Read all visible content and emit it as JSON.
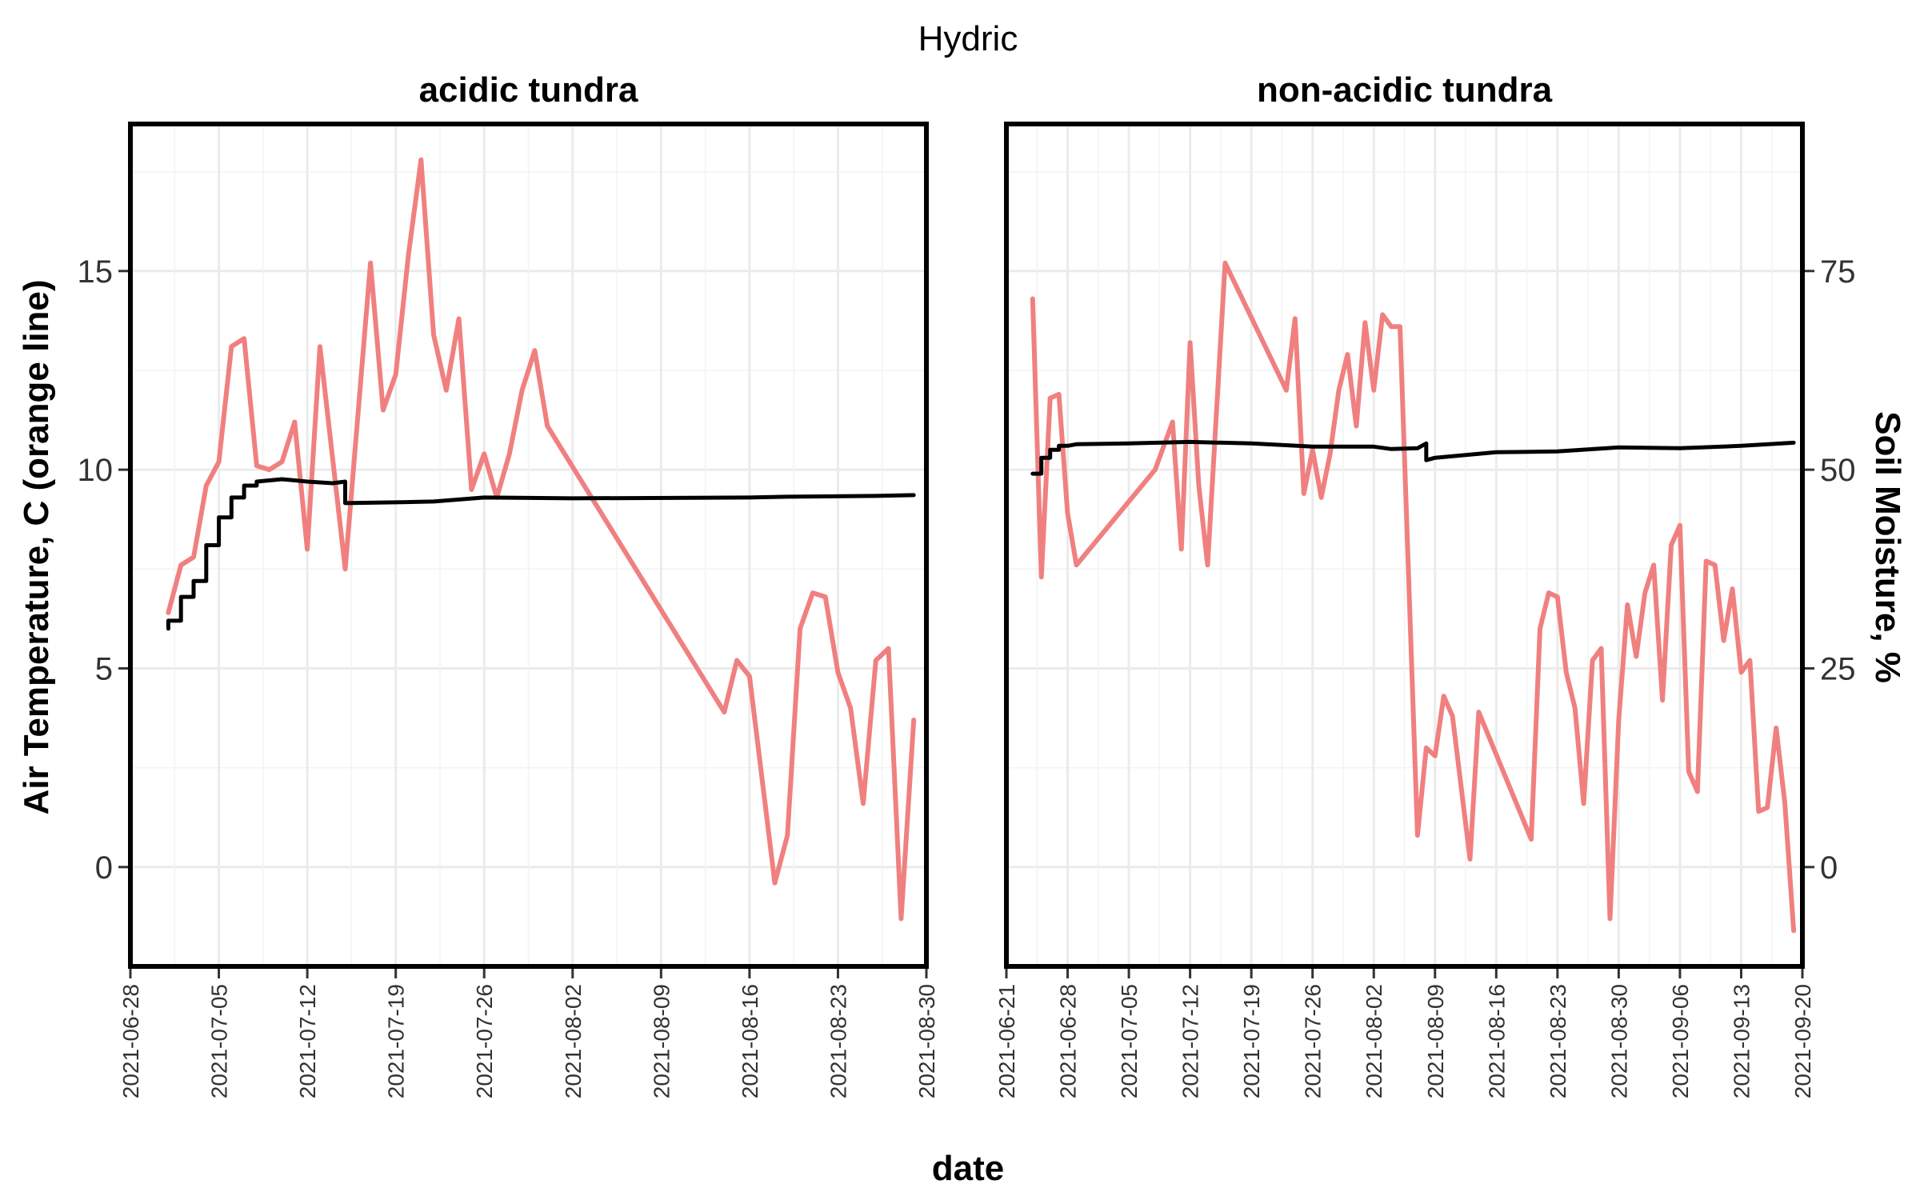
{
  "chart_data": {
    "type": "line",
    "title": "Hydric",
    "xlabel": "date",
    "ylabel": "Air Temperature, C (orange line)",
    "ylabel_secondary": "Soil Moisture, %",
    "ylim": [
      -2.5,
      18.7
    ],
    "ylim_secondary": [
      -12.5,
      93.5
    ],
    "y_ticks": [
      "0",
      "5",
      "10",
      "15"
    ],
    "y_ticks_secondary": [
      "0",
      "25",
      "50",
      "75"
    ],
    "grid": true,
    "series_colors": {
      "air_temperature": "#f08080",
      "soil_moisture": "#000000"
    },
    "panels": [
      {
        "title": "acidic tundra",
        "xlim": [
          "2021-06-28",
          "2021-08-30"
        ],
        "x_ticks": [
          "2021-06-28",
          "2021-07-05",
          "2021-07-12",
          "2021-07-19",
          "2021-07-26",
          "2021-08-02",
          "2021-08-09",
          "2021-08-16",
          "2021-08-23",
          "2021-08-30"
        ],
        "series": [
          {
            "key": "air_temperature",
            "points": [
              [
                "2021-07-01",
                6.4
              ],
              [
                "2021-07-02",
                7.6
              ],
              [
                "2021-07-03",
                7.8
              ],
              [
                "2021-07-04",
                9.6
              ],
              [
                "2021-07-05",
                10.2
              ],
              [
                "2021-07-06",
                13.1
              ],
              [
                "2021-07-07",
                13.3
              ],
              [
                "2021-07-08",
                10.1
              ],
              [
                "2021-07-09",
                10.0
              ],
              [
                "2021-07-10",
                10.2
              ],
              [
                "2021-07-11",
                11.2
              ],
              [
                "2021-07-12",
                8.0
              ],
              [
                "2021-07-13",
                13.1
              ],
              [
                "2021-07-15",
                7.5
              ],
              [
                "2021-07-17",
                15.2
              ],
              [
                "2021-07-18",
                11.5
              ],
              [
                "2021-07-19",
                12.4
              ],
              [
                "2021-07-20",
                15.4
              ],
              [
                "2021-07-21",
                17.8
              ],
              [
                "2021-07-22",
                13.4
              ],
              [
                "2021-07-23",
                12.0
              ],
              [
                "2021-07-24",
                13.8
              ],
              [
                "2021-07-25",
                9.5
              ],
              [
                "2021-07-26",
                10.4
              ],
              [
                "2021-07-27",
                9.3
              ],
              [
                "2021-07-28",
                10.4
              ],
              [
                "2021-07-29",
                12.0
              ],
              [
                "2021-07-30",
                13.0
              ],
              [
                "2021-07-31",
                11.1
              ],
              [
                "2021-08-14",
                3.9
              ],
              [
                "2021-08-15",
                5.2
              ],
              [
                "2021-08-16",
                4.8
              ],
              [
                "2021-08-18",
                -0.4
              ],
              [
                "2021-08-19",
                0.8
              ],
              [
                "2021-08-20",
                6.0
              ],
              [
                "2021-08-21",
                6.9
              ],
              [
                "2021-08-22",
                6.8
              ],
              [
                "2021-08-23",
                4.9
              ],
              [
                "2021-08-24",
                4.0
              ],
              [
                "2021-08-25",
                1.6
              ],
              [
                "2021-08-26",
                5.2
              ],
              [
                "2021-08-27",
                5.5
              ],
              [
                "2021-08-28",
                -1.3
              ],
              [
                "2021-08-29",
                3.7
              ]
            ]
          },
          {
            "key": "soil_moisture",
            "points": [
              [
                "2021-07-01",
                30.0
              ],
              [
                "2021-07-01",
                31.0
              ],
              [
                "2021-07-02",
                31.0
              ],
              [
                "2021-07-02",
                34.0
              ],
              [
                "2021-07-03",
                34.0
              ],
              [
                "2021-07-03",
                36.0
              ],
              [
                "2021-07-04",
                36.0
              ],
              [
                "2021-07-04",
                40.5
              ],
              [
                "2021-07-05",
                40.5
              ],
              [
                "2021-07-05",
                44.0
              ],
              [
                "2021-07-06",
                44.0
              ],
              [
                "2021-07-06",
                46.5
              ],
              [
                "2021-07-07",
                46.5
              ],
              [
                "2021-07-07",
                48.0
              ],
              [
                "2021-07-08",
                48.0
              ],
              [
                "2021-07-08",
                48.5
              ],
              [
                "2021-07-10",
                48.8
              ],
              [
                "2021-07-12",
                48.5
              ],
              [
                "2021-07-14",
                48.3
              ],
              [
                "2021-07-15",
                48.5
              ],
              [
                "2021-07-15",
                45.8
              ],
              [
                "2021-07-19",
                45.9
              ],
              [
                "2021-07-22",
                46.0
              ],
              [
                "2021-07-26",
                46.5
              ],
              [
                "2021-08-02",
                46.4
              ],
              [
                "2021-08-16",
                46.5
              ],
              [
                "2021-08-19",
                46.6
              ],
              [
                "2021-08-26",
                46.7
              ],
              [
                "2021-08-29",
                46.8
              ]
            ]
          }
        ]
      },
      {
        "title": "non-acidic tundra",
        "xlim": [
          "2021-06-21",
          "2021-09-20"
        ],
        "x_ticks": [
          "2021-06-21",
          "2021-06-28",
          "2021-07-05",
          "2021-07-12",
          "2021-07-19",
          "2021-07-26",
          "2021-08-02",
          "2021-08-09",
          "2021-08-16",
          "2021-08-23",
          "2021-08-30",
          "2021-09-06",
          "2021-09-13",
          "2021-09-20"
        ],
        "series": [
          {
            "key": "air_temperature",
            "points": [
              [
                "2021-06-24",
                14.3
              ],
              [
                "2021-06-25",
                7.3
              ],
              [
                "2021-06-26",
                11.8
              ],
              [
                "2021-06-27",
                11.9
              ],
              [
                "2021-06-28",
                8.9
              ],
              [
                "2021-06-29",
                7.6
              ],
              [
                "2021-07-08",
                10.0
              ],
              [
                "2021-07-10",
                11.2
              ],
              [
                "2021-07-11",
                8.0
              ],
              [
                "2021-07-12",
                13.2
              ],
              [
                "2021-07-13",
                9.6
              ],
              [
                "2021-07-14",
                7.6
              ],
              [
                "2021-07-16",
                15.2
              ],
              [
                "2021-07-23",
                12.0
              ],
              [
                "2021-07-24",
                13.8
              ],
              [
                "2021-07-25",
                9.4
              ],
              [
                "2021-07-26",
                10.5
              ],
              [
                "2021-07-27",
                9.3
              ],
              [
                "2021-07-28",
                10.4
              ],
              [
                "2021-07-29",
                12.0
              ],
              [
                "2021-07-30",
                12.9
              ],
              [
                "2021-07-31",
                11.1
              ],
              [
                "2021-08-01",
                13.7
              ],
              [
                "2021-08-02",
                12.0
              ],
              [
                "2021-08-03",
                13.9
              ],
              [
                "2021-08-04",
                13.6
              ],
              [
                "2021-08-05",
                13.6
              ],
              [
                "2021-08-07",
                0.8
              ],
              [
                "2021-08-08",
                3.0
              ],
              [
                "2021-08-09",
                2.8
              ],
              [
                "2021-08-10",
                4.3
              ],
              [
                "2021-08-11",
                3.8
              ],
              [
                "2021-08-13",
                0.2
              ],
              [
                "2021-08-14",
                3.9
              ],
              [
                "2021-08-20",
                0.7
              ],
              [
                "2021-08-21",
                6.0
              ],
              [
                "2021-08-22",
                6.9
              ],
              [
                "2021-08-23",
                6.8
              ],
              [
                "2021-08-24",
                4.9
              ],
              [
                "2021-08-25",
                4.0
              ],
              [
                "2021-08-26",
                1.6
              ],
              [
                "2021-08-27",
                5.2
              ],
              [
                "2021-08-28",
                5.5
              ],
              [
                "2021-08-29",
                -1.3
              ],
              [
                "2021-08-30",
                3.7
              ],
              [
                "2021-08-31",
                6.6
              ],
              [
                "2021-09-01",
                5.3
              ],
              [
                "2021-09-02",
                6.9
              ],
              [
                "2021-09-03",
                7.6
              ],
              [
                "2021-09-04",
                4.2
              ],
              [
                "2021-09-05",
                8.1
              ],
              [
                "2021-09-06",
                8.6
              ],
              [
                "2021-09-07",
                2.4
              ],
              [
                "2021-09-08",
                1.9
              ],
              [
                "2021-09-09",
                7.7
              ],
              [
                "2021-09-10",
                7.6
              ],
              [
                "2021-09-11",
                5.7
              ],
              [
                "2021-09-12",
                7.0
              ],
              [
                "2021-09-13",
                4.9
              ],
              [
                "2021-09-14",
                5.2
              ],
              [
                "2021-09-15",
                1.4
              ],
              [
                "2021-09-16",
                1.5
              ],
              [
                "2021-09-17",
                3.5
              ],
              [
                "2021-09-18",
                1.6
              ],
              [
                "2021-09-19",
                -1.6
              ]
            ]
          },
          {
            "key": "soil_moisture",
            "points": [
              [
                "2021-06-24",
                49.5
              ],
              [
                "2021-06-25",
                49.5
              ],
              [
                "2021-06-25",
                51.5
              ],
              [
                "2021-06-26",
                51.5
              ],
              [
                "2021-06-26",
                52.5
              ],
              [
                "2021-06-27",
                52.5
              ],
              [
                "2021-06-27",
                53.0
              ],
              [
                "2021-06-28",
                53.0
              ],
              [
                "2021-06-29",
                53.2
              ],
              [
                "2021-07-05",
                53.3
              ],
              [
                "2021-07-12",
                53.5
              ],
              [
                "2021-07-19",
                53.3
              ],
              [
                "2021-07-26",
                52.9
              ],
              [
                "2021-08-02",
                52.9
              ],
              [
                "2021-08-04",
                52.6
              ],
              [
                "2021-08-07",
                52.7
              ],
              [
                "2021-08-08",
                53.3
              ],
              [
                "2021-08-08",
                51.2
              ],
              [
                "2021-08-09",
                51.5
              ],
              [
                "2021-08-16",
                52.2
              ],
              [
                "2021-08-23",
                52.3
              ],
              [
                "2021-08-30",
                52.8
              ],
              [
                "2021-09-06",
                52.7
              ],
              [
                "2021-09-13",
                53.0
              ],
              [
                "2021-09-19",
                53.4
              ]
            ]
          }
        ]
      }
    ]
  }
}
